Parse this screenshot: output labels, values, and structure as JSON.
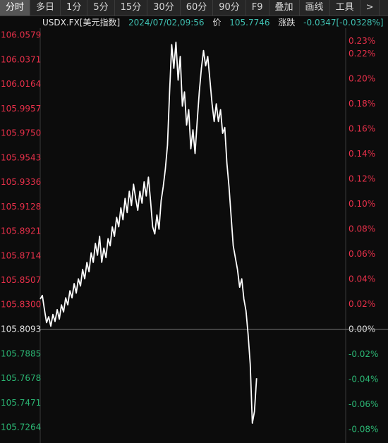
{
  "toolbar": {
    "tabs": [
      "分时",
      "多日",
      "1分",
      "5分",
      "15分",
      "30分",
      "60分",
      "90分",
      "F9",
      "叠加",
      "画线",
      "工具",
      ">"
    ]
  },
  "info": {
    "symbol": "USDX.FX[美元指数]",
    "time": "2024/07/02,09:56",
    "price_label": "价",
    "price": "105.7746",
    "change_label": "涨跌",
    "change": "-0.0347[-0.0328%]"
  },
  "chart_data": {
    "type": "line",
    "series": [
      {
        "color": "#ffffff",
        "values": [
          105.835,
          105.838,
          105.826,
          105.815,
          105.82,
          105.812,
          105.822,
          105.816,
          105.826,
          105.818,
          105.83,
          105.824,
          105.836,
          105.83,
          105.842,
          105.836,
          105.848,
          105.84,
          105.852,
          105.846,
          105.86,
          105.852,
          105.866,
          105.858,
          105.874,
          105.866,
          105.882,
          105.872,
          105.888,
          105.866,
          105.878,
          105.87,
          105.886,
          105.88,
          105.896,
          105.888,
          105.904,
          105.896,
          105.912,
          105.902,
          105.92,
          105.908,
          105.926,
          105.914,
          105.932,
          105.92,
          105.91,
          105.926,
          105.916,
          105.934,
          105.922,
          105.938,
          105.918,
          105.896,
          105.89,
          105.906,
          105.894,
          105.918,
          105.93,
          105.945,
          105.965,
          106.01,
          106.05,
          106.03,
          106.052,
          106.02,
          106.04,
          105.998,
          106.01,
          105.982,
          105.995,
          105.962,
          105.978,
          105.958,
          105.985,
          106.01,
          106.03,
          106.045,
          106.032,
          106.04,
          106.02,
          106.0,
          105.985,
          106.0,
          105.985,
          105.995,
          105.975,
          105.98,
          105.95,
          105.93,
          105.905,
          105.88,
          105.87,
          105.86,
          105.845,
          105.852,
          105.835,
          105.825,
          105.805,
          105.78,
          105.73,
          105.74,
          105.768
        ]
      }
    ],
    "xlim": [
      0,
      144
    ],
    "ylim": [
      105.7264,
      106.0579
    ],
    "yticks": [
      {
        "value": 106.0579,
        "label": "106.0579"
      },
      {
        "value": 106.0371,
        "label": "106.0371"
      },
      {
        "value": 106.0164,
        "label": "106.0164"
      },
      {
        "value": 105.9957,
        "label": "105.9957"
      },
      {
        "value": 105.975,
        "label": "105.9750"
      },
      {
        "value": 105.9543,
        "label": "105.9543"
      },
      {
        "value": 105.9336,
        "label": "105.9336"
      },
      {
        "value": 105.9128,
        "label": "105.9128"
      },
      {
        "value": 105.8921,
        "label": "105.8921"
      },
      {
        "value": 105.8714,
        "label": "105.8714"
      },
      {
        "value": 105.8507,
        "label": "105.8507"
      },
      {
        "value": 105.83,
        "label": "105.8300"
      },
      {
        "value": 105.8093,
        "label": "105.8093"
      },
      {
        "value": 105.7885,
        "label": "105.7885"
      },
      {
        "value": 105.7678,
        "label": "105.7678"
      },
      {
        "value": 105.7471,
        "label": "105.7471"
      },
      {
        "value": 105.7264,
        "label": "105.7264"
      }
    ],
    "y2lim": [
      -0.0783,
      0.2349
    ],
    "y2ticks": [
      {
        "value": 0.23,
        "label": "0.23%"
      },
      {
        "value": 0.22,
        "label": "0.22%"
      },
      {
        "value": 0.2,
        "label": "0.20%"
      },
      {
        "value": 0.18,
        "label": "0.18%"
      },
      {
        "value": 0.16,
        "label": "0.16%"
      },
      {
        "value": 0.14,
        "label": "0.14%"
      },
      {
        "value": 0.12,
        "label": "0.12%"
      },
      {
        "value": 0.1,
        "label": "0.10%"
      },
      {
        "value": 0.08,
        "label": "0.08%"
      },
      {
        "value": 0.06,
        "label": "0.06%"
      },
      {
        "value": 0.04,
        "label": "0.04%"
      },
      {
        "value": 0.02,
        "label": "0.02%"
      },
      {
        "value": 0,
        "label": "0.00%"
      },
      {
        "value": -0.02,
        "label": "-0.02%"
      },
      {
        "value": -0.04,
        "label": "-0.04%"
      },
      {
        "value": -0.06,
        "label": "-0.06%"
      },
      {
        "value": -0.08,
        "label": "-0.08%"
      }
    ]
  }
}
